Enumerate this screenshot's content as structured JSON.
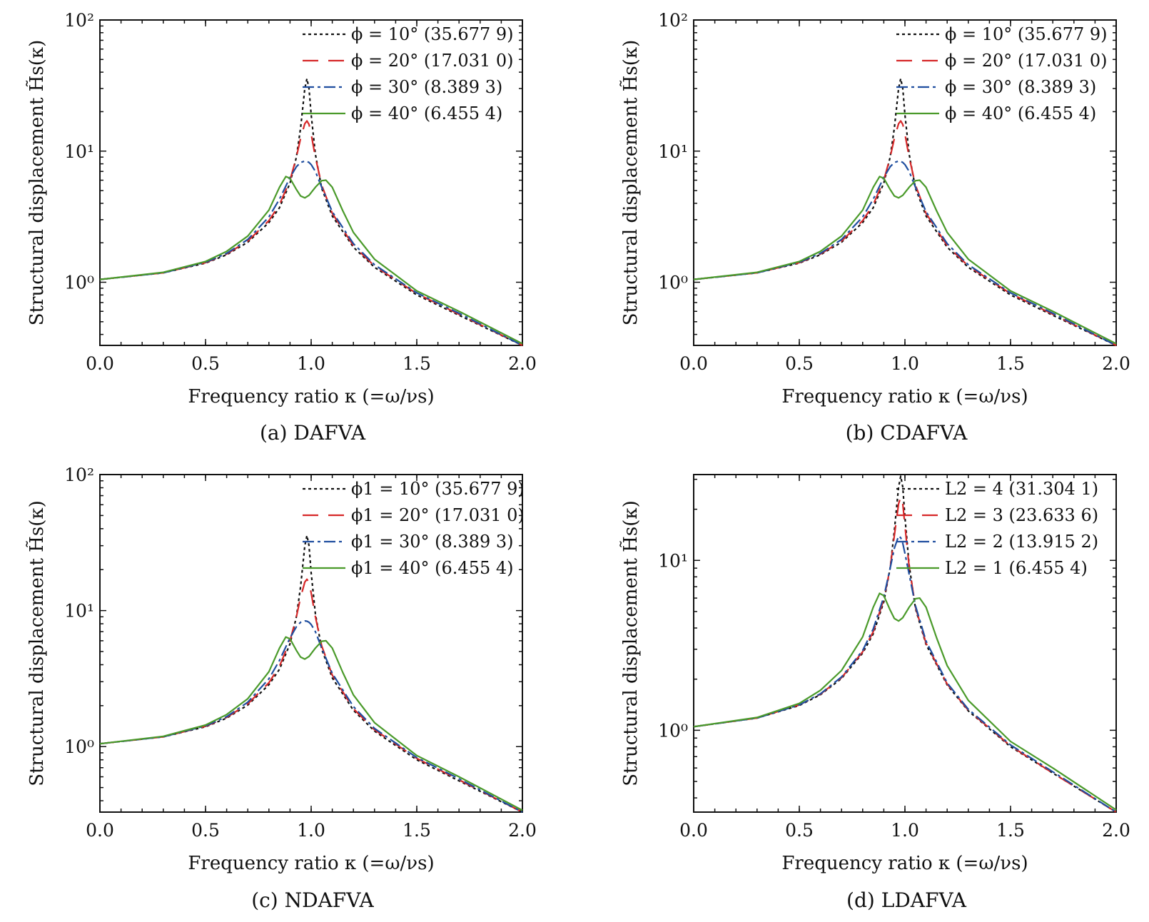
{
  "series_colors": [
    "#111111",
    "#d62728",
    "#1f4e9f",
    "#4a9a2a"
  ],
  "series_dashes": [
    "4,4",
    "22,14",
    "16,5,4,5",
    ""
  ],
  "chart_data": [
    {
      "type": "line",
      "caption": "(a) DAFVA",
      "xlabel": "Frequency ratio κ (=ω/νs)",
      "ylabel": "Structural displacement H̃s(κ)",
      "xscale": "linear",
      "yscale": "log",
      "xlim": [
        0.0,
        2.0
      ],
      "ylim": [
        0.33,
        100
      ],
      "xticks": [
        "0.0",
        "0.5",
        "1.0",
        "1.5",
        "2.0"
      ],
      "yticks": [
        {
          "value": 1,
          "label": "10⁰"
        },
        {
          "value": 10,
          "label": "10¹"
        },
        {
          "value": 100,
          "label": "10²"
        }
      ],
      "legend_position": "top-right",
      "legend": [
        "ϕ = 10° (35.677 9)",
        "ϕ = 20° (17.031 0)",
        "ϕ = 30° (8.389 3)",
        "ϕ = 40° (6.455 4)"
      ],
      "series": [
        {
          "name": "ϕ = 10° (35.677 9)",
          "x": [
            0.0,
            0.3,
            0.5,
            0.6,
            0.7,
            0.8,
            0.85,
            0.9,
            0.93,
            0.95,
            0.97,
            0.98,
            0.99,
            1.0,
            1.02,
            1.05,
            1.1,
            1.2,
            1.3,
            1.5,
            1.7,
            2.0
          ],
          "y": [
            1.05,
            1.18,
            1.4,
            1.62,
            2.02,
            2.85,
            3.7,
            5.7,
            9.0,
            15.0,
            30.0,
            35.7,
            30.0,
            19.0,
            9.5,
            5.2,
            3.2,
            1.85,
            1.3,
            0.8,
            0.56,
            0.33
          ]
        },
        {
          "name": "ϕ = 20° (17.031 0)",
          "x": [
            0.0,
            0.3,
            0.5,
            0.6,
            0.7,
            0.8,
            0.85,
            0.9,
            0.93,
            0.95,
            0.97,
            0.98,
            0.99,
            1.0,
            1.02,
            1.05,
            1.1,
            1.2,
            1.3,
            1.5,
            1.7,
            2.0
          ],
          "y": [
            1.05,
            1.18,
            1.41,
            1.64,
            2.06,
            2.95,
            3.9,
            6.0,
            9.0,
            12.5,
            16.2,
            17.0,
            16.0,
            13.5,
            9.0,
            5.5,
            3.35,
            1.9,
            1.33,
            0.82,
            0.57,
            0.33
          ]
        },
        {
          "name": "ϕ = 30° (8.389 3)",
          "x": [
            0.0,
            0.3,
            0.5,
            0.6,
            0.7,
            0.8,
            0.85,
            0.9,
            0.93,
            0.95,
            0.97,
            0.98,
            0.99,
            1.0,
            1.02,
            1.05,
            1.1,
            1.2,
            1.3,
            1.5,
            1.7,
            2.0
          ],
          "y": [
            1.05,
            1.18,
            1.42,
            1.66,
            2.12,
            3.15,
            4.3,
            6.3,
            7.6,
            8.2,
            8.39,
            8.35,
            8.2,
            7.9,
            7.0,
            5.3,
            3.45,
            1.97,
            1.36,
            0.83,
            0.58,
            0.33
          ]
        },
        {
          "name": "ϕ = 40° (6.455 4)",
          "x": [
            0.0,
            0.3,
            0.5,
            0.6,
            0.7,
            0.8,
            0.85,
            0.88,
            0.9,
            0.93,
            0.95,
            0.97,
            0.99,
            1.02,
            1.05,
            1.07,
            1.1,
            1.15,
            1.2,
            1.3,
            1.5,
            1.7,
            2.0
          ],
          "y": [
            1.05,
            1.19,
            1.44,
            1.72,
            2.25,
            3.55,
            5.3,
            6.4,
            6.2,
            5.1,
            4.55,
            4.4,
            4.6,
            5.3,
            5.95,
            6.0,
            5.3,
            3.5,
            2.4,
            1.5,
            0.86,
            0.6,
            0.34
          ]
        }
      ]
    },
    {
      "type": "line",
      "caption": "(b) CDAFVA",
      "xlabel": "Frequency ratio κ (=ω/νs)",
      "ylabel": "Structural displacement H̃s(κ)",
      "xscale": "linear",
      "yscale": "log",
      "xlim": [
        0.0,
        2.0
      ],
      "ylim": [
        0.33,
        100
      ],
      "xticks": [
        "0.0",
        "0.5",
        "1.0",
        "1.5",
        "2.0"
      ],
      "yticks": [
        {
          "value": 1,
          "label": "10⁰"
        },
        {
          "value": 10,
          "label": "10¹"
        },
        {
          "value": 100,
          "label": "10²"
        }
      ],
      "legend_position": "top-right",
      "legend": [
        "ϕ = 10° (35.677 9)",
        "ϕ = 20° (17.031 0)",
        "ϕ = 30° (8.389 3)",
        "ϕ = 40° (6.455 4)"
      ],
      "series": [
        {
          "name": "ϕ = 10° (35.677 9)",
          "x": [
            0.0,
            0.3,
            0.5,
            0.6,
            0.7,
            0.8,
            0.85,
            0.9,
            0.93,
            0.95,
            0.97,
            0.98,
            0.99,
            1.0,
            1.02,
            1.05,
            1.1,
            1.2,
            1.3,
            1.5,
            1.7,
            2.0
          ],
          "y": [
            1.05,
            1.18,
            1.4,
            1.62,
            2.02,
            2.85,
            3.7,
            5.7,
            9.0,
            15.0,
            30.0,
            35.7,
            30.0,
            19.0,
            9.5,
            5.2,
            3.2,
            1.85,
            1.3,
            0.8,
            0.56,
            0.33
          ]
        },
        {
          "name": "ϕ = 20° (17.031 0)",
          "x": [
            0.0,
            0.3,
            0.5,
            0.6,
            0.7,
            0.8,
            0.85,
            0.9,
            0.93,
            0.95,
            0.97,
            0.98,
            0.99,
            1.0,
            1.02,
            1.05,
            1.1,
            1.2,
            1.3,
            1.5,
            1.7,
            2.0
          ],
          "y": [
            1.05,
            1.18,
            1.41,
            1.64,
            2.06,
            2.95,
            3.9,
            6.0,
            9.0,
            12.5,
            16.2,
            17.0,
            16.0,
            13.5,
            9.0,
            5.5,
            3.35,
            1.9,
            1.33,
            0.82,
            0.57,
            0.33
          ]
        },
        {
          "name": "ϕ = 30° (8.389 3)",
          "x": [
            0.0,
            0.3,
            0.5,
            0.6,
            0.7,
            0.8,
            0.85,
            0.9,
            0.93,
            0.95,
            0.97,
            0.98,
            0.99,
            1.0,
            1.02,
            1.05,
            1.1,
            1.2,
            1.3,
            1.5,
            1.7,
            2.0
          ],
          "y": [
            1.05,
            1.18,
            1.42,
            1.66,
            2.12,
            3.15,
            4.3,
            6.3,
            7.6,
            8.2,
            8.39,
            8.35,
            8.2,
            7.9,
            7.0,
            5.3,
            3.45,
            1.97,
            1.36,
            0.83,
            0.58,
            0.33
          ]
        },
        {
          "name": "ϕ = 40° (6.455 4)",
          "x": [
            0.0,
            0.3,
            0.5,
            0.6,
            0.7,
            0.8,
            0.85,
            0.88,
            0.9,
            0.93,
            0.95,
            0.97,
            0.99,
            1.02,
            1.05,
            1.07,
            1.1,
            1.15,
            1.2,
            1.3,
            1.5,
            1.7,
            2.0
          ],
          "y": [
            1.05,
            1.19,
            1.44,
            1.72,
            2.25,
            3.55,
            5.3,
            6.4,
            6.2,
            5.1,
            4.55,
            4.4,
            4.6,
            5.3,
            5.95,
            6.0,
            5.3,
            3.5,
            2.4,
            1.5,
            0.86,
            0.6,
            0.34
          ]
        }
      ]
    },
    {
      "type": "line",
      "caption": "(c) NDAFVA",
      "xlabel": "Frequency ratio κ (=ω/νs)",
      "ylabel": "Structural displacement H̃s(κ)",
      "xscale": "linear",
      "yscale": "log",
      "xlim": [
        0.0,
        2.0
      ],
      "ylim": [
        0.33,
        100
      ],
      "xticks": [
        "0.0",
        "0.5",
        "1.0",
        "1.5",
        "2.0"
      ],
      "yticks": [
        {
          "value": 1,
          "label": "10⁰"
        },
        {
          "value": 10,
          "label": "10¹"
        },
        {
          "value": 100,
          "label": "10²"
        }
      ],
      "legend_position": "top-right",
      "legend": [
        "ϕ1 = 10° (35.677 9)",
        "ϕ1 = 20° (17.031 0)",
        "ϕ1 = 30° (8.389 3)",
        "ϕ1 = 40° (6.455 4)"
      ],
      "series": [
        {
          "name": "ϕ1 = 10° (35.677 9)",
          "x": [
            0.0,
            0.3,
            0.5,
            0.6,
            0.7,
            0.8,
            0.85,
            0.9,
            0.93,
            0.95,
            0.97,
            0.98,
            0.99,
            1.0,
            1.02,
            1.05,
            1.1,
            1.2,
            1.3,
            1.5,
            1.7,
            2.0
          ],
          "y": [
            1.05,
            1.18,
            1.4,
            1.62,
            2.02,
            2.85,
            3.7,
            5.7,
            9.0,
            15.0,
            30.0,
            35.7,
            30.0,
            19.0,
            9.5,
            5.2,
            3.2,
            1.85,
            1.3,
            0.8,
            0.56,
            0.33
          ]
        },
        {
          "name": "ϕ1 = 20° (17.031 0)",
          "x": [
            0.0,
            0.3,
            0.5,
            0.6,
            0.7,
            0.8,
            0.85,
            0.9,
            0.93,
            0.95,
            0.97,
            0.98,
            0.99,
            1.0,
            1.02,
            1.05,
            1.1,
            1.2,
            1.3,
            1.5,
            1.7,
            2.0
          ],
          "y": [
            1.05,
            1.18,
            1.41,
            1.64,
            2.06,
            2.95,
            3.9,
            6.0,
            9.0,
            12.5,
            16.2,
            17.0,
            16.0,
            13.5,
            9.0,
            5.5,
            3.35,
            1.9,
            1.33,
            0.82,
            0.57,
            0.33
          ]
        },
        {
          "name": "ϕ1 = 30° (8.389 3)",
          "x": [
            0.0,
            0.3,
            0.5,
            0.6,
            0.7,
            0.8,
            0.85,
            0.9,
            0.93,
            0.95,
            0.97,
            0.98,
            0.99,
            1.0,
            1.02,
            1.05,
            1.1,
            1.2,
            1.3,
            1.5,
            1.7,
            2.0
          ],
          "y": [
            1.05,
            1.18,
            1.42,
            1.66,
            2.12,
            3.15,
            4.3,
            6.3,
            7.6,
            8.2,
            8.39,
            8.35,
            8.2,
            7.9,
            7.0,
            5.3,
            3.45,
            1.97,
            1.36,
            0.83,
            0.58,
            0.33
          ]
        },
        {
          "name": "ϕ1 = 40° (6.455 4)",
          "x": [
            0.0,
            0.3,
            0.5,
            0.6,
            0.7,
            0.8,
            0.85,
            0.88,
            0.9,
            0.93,
            0.95,
            0.97,
            0.99,
            1.02,
            1.05,
            1.07,
            1.1,
            1.15,
            1.2,
            1.3,
            1.5,
            1.7,
            2.0
          ],
          "y": [
            1.05,
            1.19,
            1.44,
            1.72,
            2.25,
            3.55,
            5.3,
            6.4,
            6.2,
            5.1,
            4.55,
            4.4,
            4.6,
            5.3,
            5.95,
            6.0,
            5.3,
            3.5,
            2.4,
            1.5,
            0.86,
            0.6,
            0.34
          ]
        }
      ]
    },
    {
      "type": "line",
      "caption": "(d) LDAFVA",
      "xlabel": "Frequency ratio κ (=ω/νs)",
      "ylabel": "Structural displacement H̃s(κ)",
      "xscale": "linear",
      "yscale": "log",
      "xlim": [
        0.0,
        2.0
      ],
      "ylim": [
        0.33,
        32
      ],
      "xticks": [
        "0.0",
        "0.5",
        "1.0",
        "1.5",
        "2.0"
      ],
      "yticks": [
        {
          "value": 1,
          "label": "10⁰"
        },
        {
          "value": 10,
          "label": "10¹"
        }
      ],
      "legend_position": "top-right",
      "legend": [
        "L2 = 4 (31.304 1)",
        "L2 = 3 (23.633 6)",
        "L2 = 2 (13.915 2)",
        "L2 = 1 (6.455 4)"
      ],
      "series": [
        {
          "name": "L2 = 4 (31.304 1)",
          "x": [
            0.0,
            0.3,
            0.5,
            0.6,
            0.7,
            0.8,
            0.85,
            0.9,
            0.93,
            0.95,
            0.97,
            0.98,
            0.99,
            1.0,
            1.02,
            1.05,
            1.1,
            1.2,
            1.3,
            1.5,
            1.7,
            2.0
          ],
          "y": [
            1.05,
            1.18,
            1.4,
            1.62,
            2.02,
            2.85,
            3.7,
            5.7,
            9.0,
            15.0,
            27.0,
            31.3,
            27.0,
            18.0,
            9.4,
            5.2,
            3.2,
            1.85,
            1.3,
            0.8,
            0.56,
            0.33
          ]
        },
        {
          "name": "L2 = 3 (23.633 6)",
          "x": [
            0.0,
            0.3,
            0.5,
            0.6,
            0.7,
            0.8,
            0.85,
            0.9,
            0.93,
            0.95,
            0.97,
            0.98,
            0.99,
            1.0,
            1.02,
            1.05,
            1.1,
            1.2,
            1.3,
            1.5,
            1.7,
            2.0
          ],
          "y": [
            1.05,
            1.18,
            1.41,
            1.63,
            2.04,
            2.9,
            3.8,
            5.9,
            9.0,
            14.0,
            21.5,
            23.6,
            21.5,
            16.0,
            9.2,
            5.3,
            3.25,
            1.87,
            1.31,
            0.81,
            0.56,
            0.33
          ]
        },
        {
          "name": "L2 = 2 (13.915 2)",
          "x": [
            0.0,
            0.3,
            0.5,
            0.6,
            0.7,
            0.8,
            0.85,
            0.9,
            0.93,
            0.95,
            0.97,
            0.98,
            0.99,
            1.0,
            1.02,
            1.05,
            1.1,
            1.2,
            1.3,
            1.5,
            1.7,
            2.0
          ],
          "y": [
            1.05,
            1.18,
            1.41,
            1.64,
            2.06,
            2.95,
            3.95,
            6.1,
            9.0,
            11.8,
            13.9,
            13.6,
            12.6,
            11.0,
            8.3,
            5.4,
            3.35,
            1.9,
            1.33,
            0.82,
            0.57,
            0.33
          ]
        },
        {
          "name": "L2 = 1 (6.455 4)",
          "x": [
            0.0,
            0.3,
            0.5,
            0.6,
            0.7,
            0.8,
            0.85,
            0.88,
            0.9,
            0.93,
            0.95,
            0.97,
            0.99,
            1.02,
            1.05,
            1.07,
            1.1,
            1.15,
            1.2,
            1.3,
            1.5,
            1.7,
            2.0
          ],
          "y": [
            1.05,
            1.19,
            1.44,
            1.72,
            2.25,
            3.55,
            5.3,
            6.4,
            6.2,
            5.1,
            4.55,
            4.4,
            4.6,
            5.3,
            5.95,
            6.0,
            5.3,
            3.5,
            2.4,
            1.5,
            0.86,
            0.6,
            0.34
          ]
        }
      ]
    }
  ]
}
